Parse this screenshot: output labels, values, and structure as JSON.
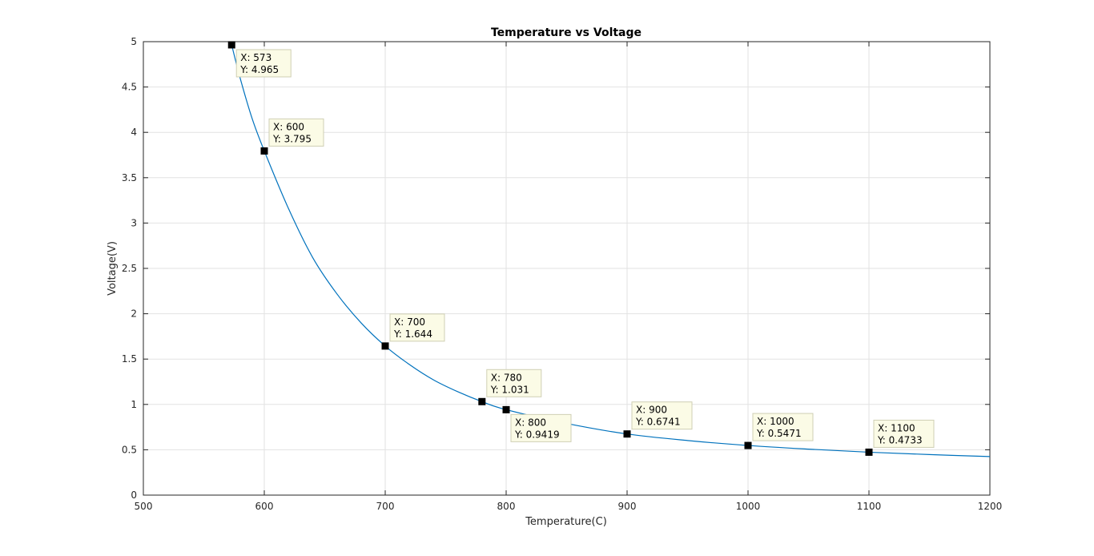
{
  "chart_data": {
    "type": "line",
    "title": "Temperature vs Voltage",
    "xlabel": "Temperature(C)",
    "ylabel": "Voltage(V)",
    "xlim": [
      500,
      1200
    ],
    "ylim": [
      0,
      5
    ],
    "xticks": [
      500,
      600,
      700,
      800,
      900,
      1000,
      1100,
      1200
    ],
    "xtick_labels": [
      "500",
      "600",
      "700",
      "800",
      "900",
      "1000",
      "1100",
      "1200"
    ],
    "yticks": [
      0,
      0.5,
      1,
      1.5,
      2,
      2.5,
      3,
      3.5,
      4,
      4.5,
      5
    ],
    "ytick_labels": [
      "0",
      "0.5",
      "1",
      "1.5",
      "2",
      "2.5",
      "3",
      "3.5",
      "4",
      "4.5",
      "5"
    ],
    "grid": true,
    "series": [
      {
        "color": "#0072bd",
        "x": [
          573,
          580,
          590,
          600,
          620,
          640,
          660,
          680,
          700,
          720,
          740,
          760,
          780,
          800,
          850,
          900,
          950,
          1000,
          1050,
          1100,
          1150,
          1200
        ],
        "y": [
          4.965,
          4.6,
          4.15,
          3.795,
          3.16,
          2.62,
          2.22,
          1.9,
          1.644,
          1.44,
          1.27,
          1.14,
          1.031,
          0.9419,
          0.79,
          0.6741,
          0.602,
          0.5471,
          0.507,
          0.4733,
          0.447,
          0.425
        ]
      }
    ],
    "datatips": [
      {
        "x": 573,
        "y": 4.965,
        "line1": "X: 573",
        "line2": "Y: 4.965",
        "placement": "bottom-right"
      },
      {
        "x": 600,
        "y": 3.795,
        "line1": "X: 600",
        "line2": "Y: 3.795",
        "placement": "top-right"
      },
      {
        "x": 700,
        "y": 1.644,
        "line1": "X: 700",
        "line2": "Y: 1.644",
        "placement": "top-right"
      },
      {
        "x": 780,
        "y": 1.031,
        "line1": "X: 780",
        "line2": "Y: 1.031",
        "placement": "top-right"
      },
      {
        "x": 800,
        "y": 0.9419,
        "line1": "X: 800",
        "line2": "Y: 0.9419",
        "placement": "bottom-right"
      },
      {
        "x": 900,
        "y": 0.6741,
        "line1": "X: 900",
        "line2": "Y: 0.6741",
        "placement": "top-right"
      },
      {
        "x": 1000,
        "y": 0.5471,
        "line1": "X: 1000",
        "line2": "Y: 0.5471",
        "placement": "top-right"
      },
      {
        "x": 1100,
        "y": 0.4733,
        "line1": "X: 1100",
        "line2": "Y: 0.4733",
        "placement": "top-right"
      }
    ]
  }
}
